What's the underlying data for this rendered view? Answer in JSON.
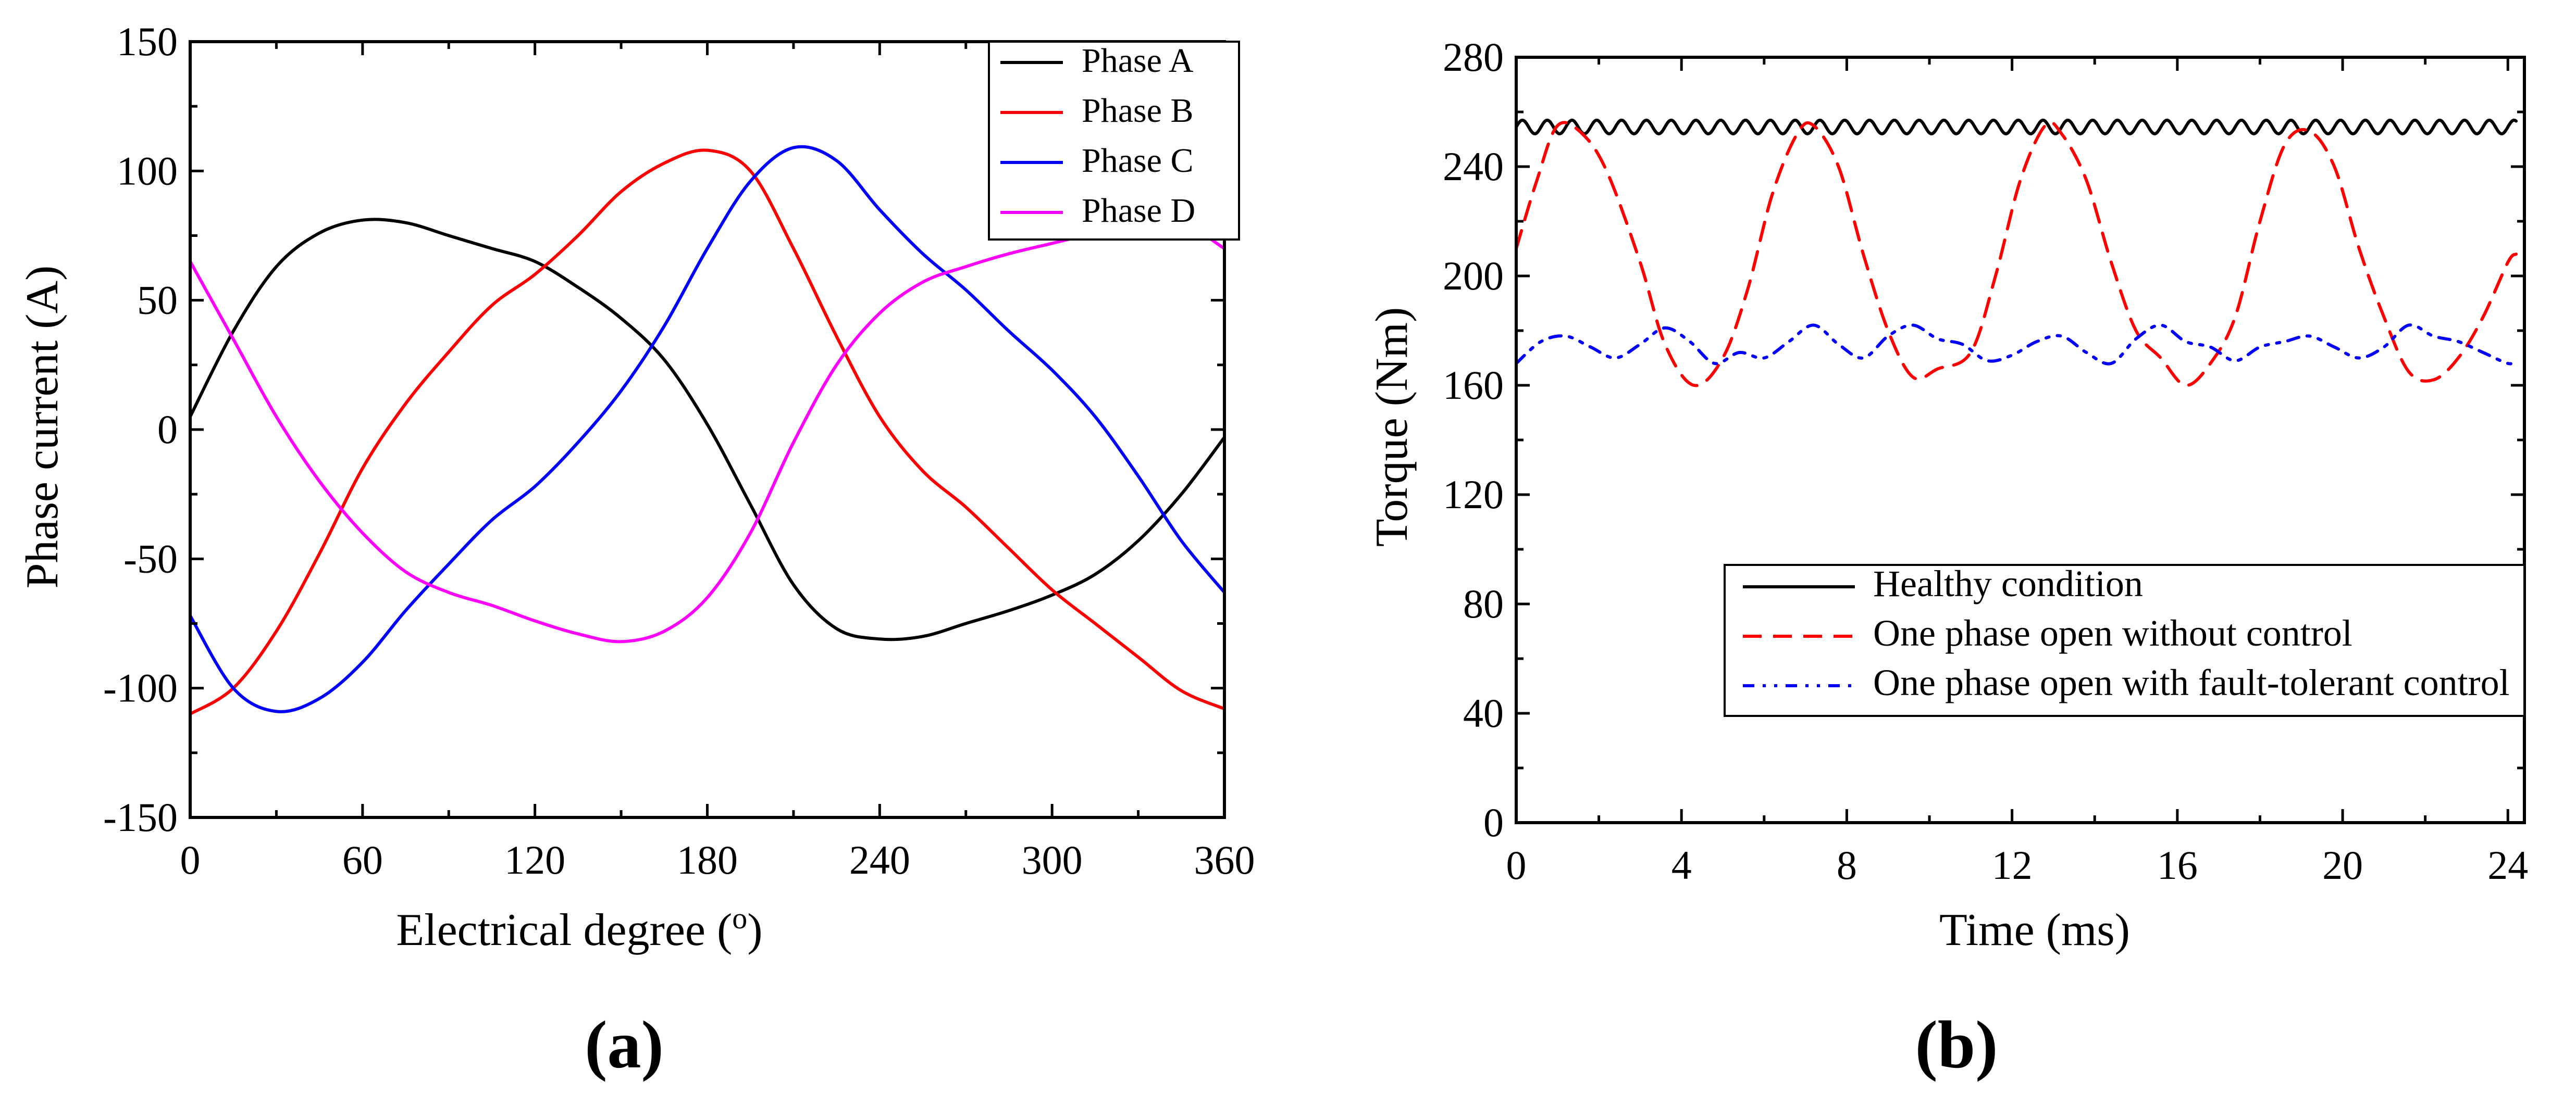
{
  "chart_data": [
    {
      "panel_label": "(a)",
      "type": "line",
      "title": "",
      "xlabel": "Electrical degree (",
      "xlabel_sup": "o",
      "xlabel_end": ")",
      "ylabel": "Phase current (A)",
      "xlim": [
        0,
        360
      ],
      "ylim": [
        -150,
        150
      ],
      "xticks": [
        "0",
        "60",
        "120",
        "180",
        "240",
        "300",
        "360"
      ],
      "yticks": [
        "-150",
        "-100",
        "-50",
        "0",
        "50",
        "100",
        "150"
      ],
      "xtick_values": [
        0,
        60,
        120,
        180,
        240,
        300,
        360
      ],
      "ytick_values": [
        -150,
        -100,
        -50,
        0,
        50,
        100,
        150
      ],
      "legend_position": "top-right",
      "series": [
        {
          "name": "Phase A",
          "color": "#000000",
          "style": "solid",
          "x": [
            0,
            15,
            30,
            45,
            60,
            75,
            90,
            105,
            120,
            135,
            150,
            165,
            180,
            195,
            210,
            225,
            240,
            255,
            270,
            285,
            300,
            315,
            330,
            345,
            360
          ],
          "y": [
            5,
            38,
            63,
            76,
            81,
            80,
            75,
            70,
            65,
            55,
            43,
            27,
            2,
            -29,
            -60,
            -77,
            -81,
            -80,
            -75,
            -70,
            -64,
            -56,
            -43,
            -25,
            -3
          ]
        },
        {
          "name": "Phase B",
          "color": "#ff0000",
          "style": "solid",
          "x": [
            0,
            15,
            30,
            45,
            60,
            75,
            90,
            105,
            120,
            135,
            150,
            165,
            180,
            195,
            210,
            225,
            240,
            255,
            270,
            285,
            300,
            315,
            330,
            345,
            360
          ],
          "y": [
            -110,
            -100,
            -78,
            -48,
            -15,
            10,
            30,
            48,
            60,
            75,
            92,
            103,
            108,
            100,
            70,
            36,
            5,
            -16,
            -30,
            -46,
            -62,
            -75,
            -88,
            -101,
            -108
          ]
        },
        {
          "name": "Phase C",
          "color": "#0000ff",
          "style": "solid",
          "x": [
            0,
            15,
            30,
            45,
            60,
            75,
            90,
            105,
            120,
            135,
            150,
            165,
            180,
            195,
            210,
            225,
            240,
            255,
            270,
            285,
            300,
            315,
            330,
            345,
            360
          ],
          "y": [
            -72,
            -100,
            -109,
            -104,
            -90,
            -70,
            -52,
            -35,
            -22,
            -5,
            15,
            40,
            70,
            96,
            109,
            104,
            85,
            68,
            54,
            38,
            23,
            5,
            -18,
            -43,
            -63
          ]
        },
        {
          "name": "Phase D",
          "color": "#ff00ff",
          "style": "solid",
          "x": [
            0,
            15,
            30,
            45,
            60,
            75,
            90,
            105,
            120,
            135,
            150,
            165,
            180,
            195,
            210,
            225,
            240,
            255,
            270,
            285,
            300,
            315,
            330,
            345,
            360
          ],
          "y": [
            65,
            35,
            5,
            -20,
            -40,
            -55,
            -63,
            -68,
            -74,
            -79,
            -82,
            -78,
            -65,
            -40,
            -5,
            25,
            45,
            57,
            63,
            68,
            72,
            76,
            79,
            80,
            70
          ]
        }
      ]
    },
    {
      "panel_label": "(b)",
      "type": "line",
      "title": "",
      "xlabel": "Time (ms)",
      "ylabel": "Torque (Nm)",
      "xlim": [
        0,
        24.4
      ],
      "ylim": [
        0,
        280
      ],
      "xticks": [
        "0",
        "4",
        "8",
        "12",
        "16",
        "20",
        "24"
      ],
      "yticks": [
        "0",
        "40",
        "80",
        "120",
        "160",
        "200",
        "240",
        "280"
      ],
      "xtick_values": [
        0,
        4,
        8,
        12,
        16,
        20,
        24
      ],
      "ytick_values": [
        0,
        40,
        80,
        120,
        160,
        200,
        240,
        280
      ],
      "legend_position": "lower-right",
      "series": [
        {
          "name": "Healthy condition",
          "color": "#000000",
          "style": "solid",
          "ripple": {
            "mean": 254.5,
            "amplitude": 2.5,
            "period_ms": 0.6
          },
          "x": [
            0,
            24.2
          ],
          "y": [
            254.5,
            254.5
          ]
        },
        {
          "name": "One phase open without control",
          "color": "#ff0000",
          "style": "dashed",
          "x": [
            0,
            0.5,
            1.0,
            1.6,
            2.2,
            3.0,
            3.6,
            4.3,
            5.0,
            5.6,
            6.2,
            6.8,
            7.2,
            7.8,
            8.4,
            9.0,
            9.6,
            10.2,
            11.0,
            11.6,
            12.2,
            12.8,
            13.2,
            13.8,
            14.4,
            15.0,
            15.6,
            16.2,
            16.8,
            17.4,
            18.0,
            18.6,
            19.2,
            19.8,
            20.4,
            21.0,
            21.6,
            22.2,
            22.8,
            23.4,
            24.0,
            24.2
          ],
          "y": [
            210,
            235,
            255,
            252,
            238,
            205,
            175,
            160,
            170,
            195,
            230,
            252,
            255,
            240,
            208,
            180,
            163,
            166,
            172,
            200,
            235,
            255,
            252,
            235,
            205,
            180,
            170,
            160,
            168,
            185,
            220,
            248,
            253,
            240,
            210,
            185,
            165,
            162,
            170,
            185,
            205,
            208
          ]
        },
        {
          "name": "One phase open with fault-tolerant control",
          "color": "#0000ff",
          "style": "dash-dot-dot",
          "x": [
            0,
            0.6,
            1.2,
            1.8,
            2.4,
            3.0,
            3.6,
            4.2,
            4.8,
            5.4,
            6.0,
            6.6,
            7.2,
            7.8,
            8.4,
            9.0,
            9.6,
            10.2,
            10.8,
            11.4,
            12.0,
            12.6,
            13.2,
            13.8,
            14.4,
            15.0,
            15.6,
            16.2,
            16.8,
            17.4,
            18.0,
            18.6,
            19.2,
            19.8,
            20.4,
            21.0,
            21.6,
            22.2,
            22.8,
            23.4,
            24.0,
            24.2
          ],
          "y": [
            168,
            176,
            178,
            174,
            170,
            175,
            181,
            176,
            168,
            172,
            170,
            176,
            182,
            175,
            170,
            178,
            182,
            177,
            175,
            169,
            171,
            176,
            178,
            172,
            168,
            177,
            182,
            176,
            174,
            169,
            174,
            176,
            178,
            174,
            170,
            174,
            182,
            178,
            176,
            172,
            168,
            169
          ]
        }
      ]
    }
  ]
}
